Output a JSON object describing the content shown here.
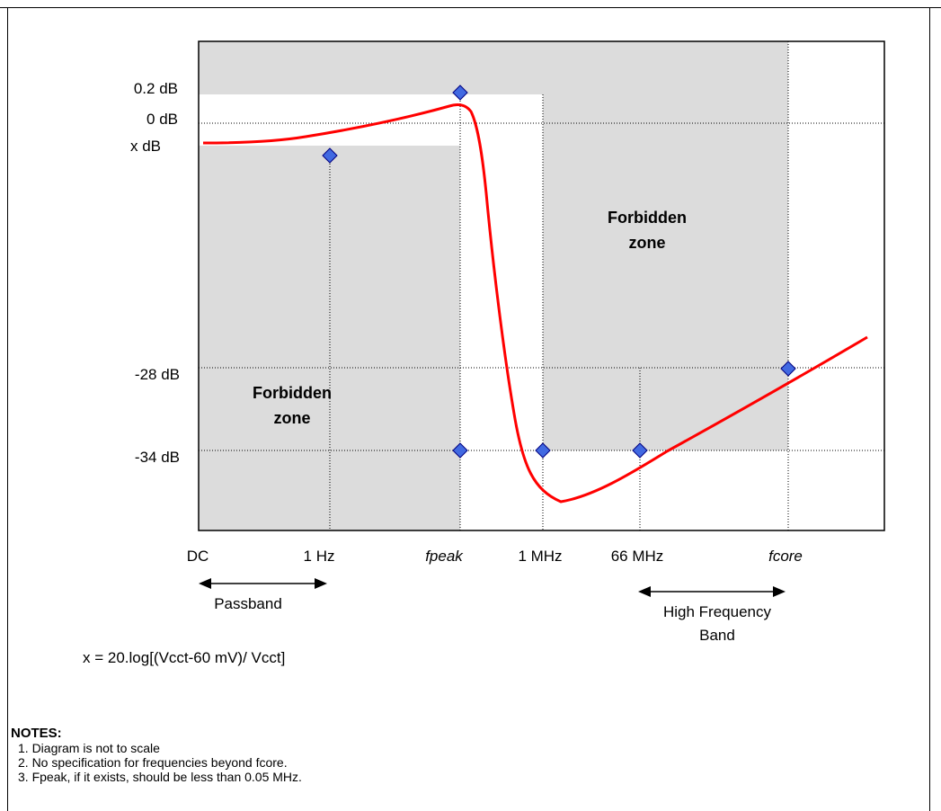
{
  "y_labels": {
    "plus_0_2": "0.2 dB",
    "zero": "0 dB",
    "x": "x dB",
    "minus_28": "-28 dB",
    "minus_34": "-34 dB"
  },
  "x_labels": {
    "dc": "DC",
    "one_hz": "1 Hz",
    "fpeak": "fpeak",
    "one_mhz": "1 MHz",
    "sixtysix_mhz": "66 MHz",
    "fcore": "fcore"
  },
  "zones": {
    "upper_line1": "Forbidden",
    "upper_line2": "zone",
    "lower_line1": "Forbidden",
    "lower_line2": "zone"
  },
  "bands": {
    "passband": "Passband",
    "high_line1": "High Frequency",
    "high_line2": "Band"
  },
  "formula": "x = 20.log[(Vcct-60 mV)/ Vcct]",
  "notes": {
    "title": "NOTES:",
    "items": [
      "1. Diagram is not to scale",
      "2. No specification for frequencies beyond fcore.",
      "3. Fpeak, if it exists, should be less than 0.05 MHz."
    ]
  },
  "colors": {
    "forbidden_zone": "#dcdcdc",
    "response_curve": "#ff0000",
    "marker_fill": "#4169e1",
    "marker_stroke": "#000080",
    "grid_line": "#000000"
  }
}
